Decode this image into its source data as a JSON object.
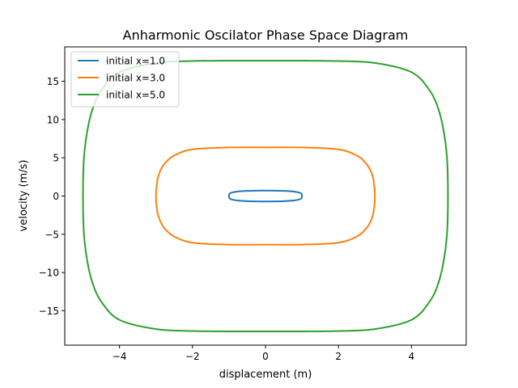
{
  "chart_data": {
    "type": "line",
    "title": "Anharmonic Oscilator Phase Space Diagram",
    "xlabel": "displacement (m)",
    "ylabel": "velocity (m/s)",
    "xlim": [
      -5.5,
      5.5
    ],
    "ylim": [
      -19.5,
      19.5
    ],
    "xticks": [
      -4,
      -2,
      0,
      2,
      4
    ],
    "xtick_labels": [
      "−4",
      "−2",
      "0",
      "2",
      "4"
    ],
    "yticks": [
      -15,
      -10,
      -5,
      0,
      5,
      10,
      15
    ],
    "ytick_labels": [
      "−15",
      "−10",
      "−5",
      "0",
      "5",
      "10",
      "15"
    ],
    "grid": false,
    "legend_position": "top-left",
    "series": [
      {
        "name": "initial x=1.0",
        "color": "#1f77b4",
        "x": [
          1.0,
          0.98,
          0.9,
          0.75,
          0.5,
          0.25,
          0.0,
          -0.25,
          -0.5,
          -0.75,
          -0.9,
          -0.98,
          -1.0,
          -0.98,
          -0.9,
          -0.75,
          -0.5,
          -0.25,
          0.0,
          0.25,
          0.5,
          0.75,
          0.9,
          0.98,
          1.0
        ],
        "y": [
          0.0,
          0.32,
          0.48,
          0.6,
          0.67,
          0.7,
          0.71,
          0.7,
          0.67,
          0.6,
          0.48,
          0.32,
          0.0,
          -0.32,
          -0.48,
          -0.6,
          -0.67,
          -0.7,
          -0.71,
          -0.7,
          -0.67,
          -0.6,
          -0.48,
          -0.32,
          0.0
        ]
      },
      {
        "name": "initial x=3.0",
        "color": "#ff7f0e",
        "x": [
          3.0,
          2.97,
          2.9,
          2.75,
          2.5,
          2.0,
          1.0,
          0.0,
          -1.0,
          -2.0,
          -2.5,
          -2.75,
          -2.9,
          -2.97,
          -3.0,
          -2.97,
          -2.9,
          -2.75,
          -2.5,
          -2.0,
          -1.0,
          0.0,
          1.0,
          2.0,
          2.5,
          2.75,
          2.9,
          2.97,
          3.0
        ],
        "y": [
          0.0,
          1.8,
          3.1,
          4.3,
          5.3,
          6.1,
          6.35,
          6.36,
          6.35,
          6.1,
          5.3,
          4.3,
          3.1,
          1.8,
          0.0,
          -1.8,
          -3.1,
          -4.3,
          -5.3,
          -6.1,
          -6.35,
          -6.36,
          -6.35,
          -6.1,
          -5.3,
          -4.3,
          -3.1,
          -1.8,
          0.0
        ]
      },
      {
        "name": "initial x=5.0",
        "color": "#2ca02c",
        "x": [
          5.0,
          4.98,
          4.9,
          4.75,
          4.5,
          4.0,
          3.0,
          2.0,
          1.0,
          0.0,
          -1.0,
          -2.0,
          -3.0,
          -4.0,
          -4.5,
          -4.75,
          -4.9,
          -4.98,
          -5.0,
          -4.98,
          -4.9,
          -4.75,
          -4.5,
          -4.0,
          -3.0,
          -2.0,
          -1.0,
          0.0,
          1.0,
          2.0,
          3.0,
          4.0,
          4.5,
          4.75,
          4.9,
          4.98,
          5.0
        ],
        "y": [
          0.0,
          4.5,
          8.0,
          11.2,
          13.8,
          16.2,
          17.4,
          17.65,
          17.7,
          17.7,
          17.7,
          17.65,
          17.4,
          16.2,
          13.8,
          11.2,
          8.0,
          4.5,
          0.0,
          -4.5,
          -8.0,
          -11.2,
          -13.8,
          -16.2,
          -17.4,
          -17.65,
          -17.7,
          -17.7,
          -17.7,
          -17.65,
          -17.4,
          -16.2,
          -13.8,
          -11.2,
          -8.0,
          -4.5,
          0.0
        ]
      }
    ]
  }
}
